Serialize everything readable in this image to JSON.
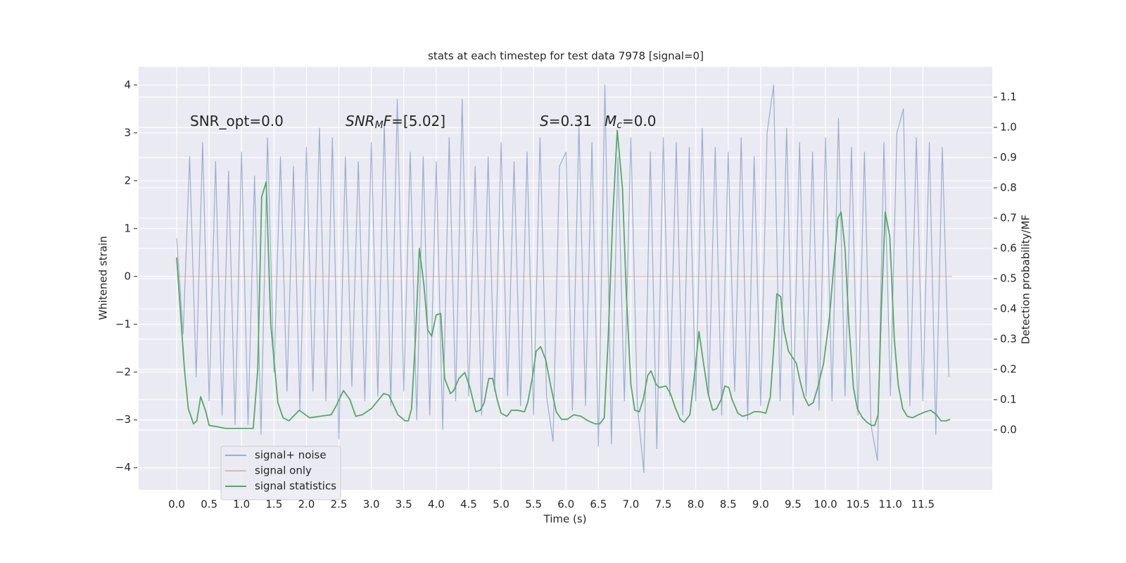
{
  "chart_data": {
    "type": "line",
    "title": "stats at each timestep for test data 7978 [signal=0]",
    "x_label": "Time (s)",
    "y_label": "Whitened strain",
    "y2_label": "Detection probability/MF",
    "xlim": [
      -0.586,
      12.57
    ],
    "ylim": [
      -4.46,
      4.38
    ],
    "y2lim": [
      -0.198,
      1.2
    ],
    "xticks": [
      {
        "value": 0,
        "label": "0.0"
      },
      0.5,
      {
        "value": 1,
        "label": "1.0"
      },
      1.5,
      {
        "value": 2,
        "label": "2.0"
      },
      2.5,
      {
        "value": 3,
        "label": "3.0"
      },
      3.5,
      {
        "value": 4,
        "label": "4.0"
      },
      4.5,
      {
        "value": 5,
        "label": "5.0"
      },
      5.5,
      {
        "value": 6,
        "label": "6.0"
      },
      6.5,
      {
        "value": 7,
        "label": "7.0"
      },
      7.5,
      {
        "value": 8,
        "label": "8.0"
      },
      8.5,
      {
        "value": 9,
        "label": "9.0"
      },
      9.5,
      {
        "value": 10,
        "label": "10.0"
      },
      10.5,
      {
        "value": 11,
        "label": "11.0"
      },
      11.5
    ],
    "yticks": [
      {
        "value": -4,
        "label": "−4"
      },
      {
        "value": -3,
        "label": "−3"
      },
      {
        "value": -2,
        "label": "−2"
      },
      {
        "value": -1,
        "label": "−1"
      },
      0,
      1,
      2,
      3,
      4
    ],
    "y2ticks": [
      {
        "value": 0,
        "label": "0.0"
      },
      0.1,
      0.2,
      0.3,
      0.4,
      0.5,
      0.6,
      0.7,
      0.8,
      0.9,
      {
        "value": 1,
        "label": "1.0"
      },
      1.1
    ],
    "grid": true,
    "legend": "lower left",
    "annotations": [
      {
        "parts": [
          {
            "text": "SNR_opt=0.0"
          }
        ]
      },
      {
        "parts": [
          {
            "text": "SNR",
            "style": "italic"
          },
          {
            "text": "M",
            "style": "sub"
          },
          {
            "text": "F",
            "style": "italic"
          },
          {
            "text": "=[5.02]"
          }
        ]
      },
      {
        "parts": [
          {
            "text": "S",
            "style": "italic"
          },
          {
            "text": "=0.31"
          }
        ]
      },
      {
        "parts": [
          {
            "text": "M",
            "style": "italic"
          },
          {
            "text": "c",
            "style": "sub"
          },
          {
            "text": "=0.0"
          }
        ]
      }
    ],
    "series": [
      {
        "name": "signal+ noise",
        "color": "#4c72b0",
        "opacity": 0.5,
        "x": [
          0,
          0.1,
          0.2,
          0.3,
          0.4,
          0.5,
          0.6,
          0.7,
          0.8,
          0.9,
          1,
          1.1,
          1.2,
          1.3,
          1.4,
          1.5,
          1.6,
          1.7,
          1.8,
          1.9,
          2,
          2.1,
          2.2,
          2.3,
          2.4,
          2.5,
          2.6,
          2.7,
          2.8,
          2.9,
          3,
          3.1,
          3.2,
          3.3,
          3.4,
          3.5,
          3.6,
          3.7,
          3.8,
          3.9,
          4,
          4.1,
          4.2,
          4.3,
          4.4,
          4.5,
          4.6,
          4.7,
          4.8,
          4.9,
          5,
          5.1,
          5.2,
          5.3,
          5.4,
          5.5,
          5.6,
          5.7,
          5.8,
          5.9,
          6,
          6.1,
          6.2,
          6.3,
          6.4,
          6.5,
          6.6,
          6.7,
          6.8,
          6.9,
          7,
          7.1,
          7.2,
          7.3,
          7.4,
          7.5,
          7.6,
          7.7,
          7.8,
          7.9,
          8,
          8.1,
          8.2,
          8.3,
          8.4,
          8.5,
          8.6,
          8.7,
          8.8,
          8.9,
          9,
          9.1,
          9.2,
          9.3,
          9.4,
          9.5,
          9.6,
          9.7,
          9.8,
          9.9,
          10,
          10.1,
          10.2,
          10.3,
          10.4,
          10.5,
          10.6,
          10.7,
          10.8,
          10.9,
          11,
          11.1,
          11.2,
          11.3,
          11.4,
          11.5,
          11.6,
          11.7,
          11.8,
          11.9
        ],
        "values": [
          0.8,
          -1.2,
          2.5,
          -2.1,
          2.8,
          -2.6,
          2.4,
          -2.9,
          2.2,
          -3.1,
          2.6,
          -3.1,
          2.1,
          -3.3,
          2.9,
          -2.0,
          2.5,
          -2.4,
          2.3,
          -2.8,
          2.7,
          -2.4,
          3.1,
          -2.6,
          2.9,
          -3.4,
          2.5,
          -2.3,
          2.4,
          -2.6,
          2.8,
          -2.5,
          3.2,
          -2.7,
          3.7,
          -2.4,
          2.6,
          -3.0,
          2.5,
          -2.9,
          2.4,
          -3.2,
          2.9,
          -2.6,
          3.7,
          -2.5,
          2.3,
          -2.9,
          2.5,
          -2.4,
          2.8,
          -2.5,
          2.4,
          -2.7,
          2.6,
          -2.9,
          2.9,
          -2.5,
          -3.45,
          2.3,
          2.6,
          -2.8,
          3.2,
          -2.7,
          2.8,
          -3.55,
          4.0,
          -3.5,
          2.5,
          -2.6,
          2.9,
          -2.7,
          -4.1,
          2.6,
          -3.6,
          2.9,
          -2.5,
          2.8,
          -2.9,
          2.7,
          -2.6,
          3.1,
          -2.5,
          2.7,
          -2.9,
          2.6,
          -2.4,
          2.9,
          -3.0,
          2.5,
          -2.7,
          3.0,
          4.0,
          -2.6,
          3.1,
          -2.9,
          2.8,
          -2.5,
          2.6,
          -2.8,
          2.9,
          -2.6,
          3.3,
          -2.5,
          2.7,
          -2.9,
          2.6,
          -3.1,
          -3.85,
          2.8,
          -2.5,
          3.0,
          3.5,
          -2.7,
          2.9,
          -2.6,
          2.8,
          -3.3,
          2.7,
          -2.1
        ]
      },
      {
        "name": "signal only",
        "color": "#dd8452",
        "opacity": 0.5,
        "x": [
          0,
          11.95
        ],
        "values": [
          0,
          0
        ]
      },
      {
        "name": "signal statistics",
        "color": "#55a868",
        "opacity": 1,
        "axis": "y2",
        "x": [
          0,
          0.12,
          0.18,
          0.26,
          0.31,
          0.37,
          0.45,
          0.5,
          0.64,
          0.75,
          1.18,
          1.25,
          1.31,
          1.38,
          1.45,
          1.56,
          1.64,
          1.73,
          1.89,
          2.05,
          2.21,
          2.38,
          2.46,
          2.57,
          2.67,
          2.76,
          2.86,
          3.0,
          3.19,
          3.27,
          3.41,
          3.52,
          3.57,
          3.62,
          3.68,
          3.74,
          3.81,
          3.87,
          3.93,
          4.0,
          4.07,
          4.13,
          4.22,
          4.27,
          4.35,
          4.44,
          4.52,
          4.61,
          4.68,
          4.74,
          4.81,
          4.87,
          4.94,
          5.0,
          5.09,
          5.16,
          5.25,
          5.36,
          5.41,
          5.48,
          5.54,
          5.61,
          5.69,
          5.76,
          5.85,
          5.93,
          6.02,
          6.12,
          6.23,
          6.34,
          6.45,
          6.52,
          6.59,
          6.65,
          6.72,
          6.79,
          6.87,
          6.93,
          7.0,
          7.06,
          7.13,
          7.19,
          7.26,
          7.31,
          7.39,
          7.44,
          7.54,
          7.61,
          7.69,
          7.76,
          7.82,
          7.91,
          7.99,
          8.05,
          8.12,
          8.19,
          8.26,
          8.32,
          8.39,
          8.45,
          8.51,
          8.56,
          8.65,
          8.72,
          8.81,
          8.9,
          8.99,
          9.08,
          9.15,
          9.21,
          9.25,
          9.31,
          9.36,
          9.43,
          9.49,
          9.55,
          9.61,
          9.67,
          9.74,
          9.81,
          9.88,
          9.97,
          10.06,
          10.13,
          10.19,
          10.24,
          10.3,
          10.36,
          10.43,
          10.49,
          10.57,
          10.64,
          10.71,
          10.76,
          10.81,
          10.86,
          10.92,
          10.99,
          11.06,
          11.12,
          11.19,
          11.26,
          11.34,
          11.43,
          11.54,
          11.62,
          11.71,
          11.78,
          11.86,
          11.92
        ],
        "values": [
          0.57,
          0.2,
          0.07,
          0.02,
          0.03,
          0.11,
          0.06,
          0.015,
          0.01,
          0.005,
          0.005,
          0.2,
          0.77,
          0.82,
          0.35,
          0.09,
          0.04,
          0.03,
          0.065,
          0.04,
          0.045,
          0.05,
          0.08,
          0.13,
          0.1,
          0.045,
          0.05,
          0.07,
          0.12,
          0.115,
          0.05,
          0.03,
          0.03,
          0.07,
          0.3,
          0.6,
          0.48,
          0.33,
          0.31,
          0.38,
          0.385,
          0.17,
          0.12,
          0.13,
          0.17,
          0.19,
          0.14,
          0.06,
          0.065,
          0.09,
          0.17,
          0.17,
          0.1,
          0.055,
          0.045,
          0.065,
          0.065,
          0.06,
          0.09,
          0.17,
          0.26,
          0.275,
          0.23,
          0.15,
          0.06,
          0.035,
          0.035,
          0.05,
          0.045,
          0.03,
          0.02,
          0.02,
          0.04,
          0.3,
          0.7,
          0.99,
          0.8,
          0.45,
          0.15,
          0.065,
          0.06,
          0.1,
          0.18,
          0.195,
          0.15,
          0.14,
          0.145,
          0.12,
          0.07,
          0.035,
          0.025,
          0.05,
          0.2,
          0.325,
          0.22,
          0.12,
          0.065,
          0.07,
          0.1,
          0.145,
          0.14,
          0.1,
          0.055,
          0.045,
          0.05,
          0.06,
          0.06,
          0.055,
          0.11,
          0.3,
          0.45,
          0.44,
          0.33,
          0.26,
          0.24,
          0.22,
          0.16,
          0.11,
          0.08,
          0.09,
          0.14,
          0.22,
          0.37,
          0.55,
          0.7,
          0.72,
          0.6,
          0.35,
          0.14,
          0.07,
          0.04,
          0.025,
          0.015,
          0.015,
          0.05,
          0.4,
          0.72,
          0.64,
          0.3,
          0.15,
          0.07,
          0.045,
          0.04,
          0.05,
          0.06,
          0.065,
          0.05,
          0.03,
          0.03,
          0.035
        ]
      }
    ]
  }
}
